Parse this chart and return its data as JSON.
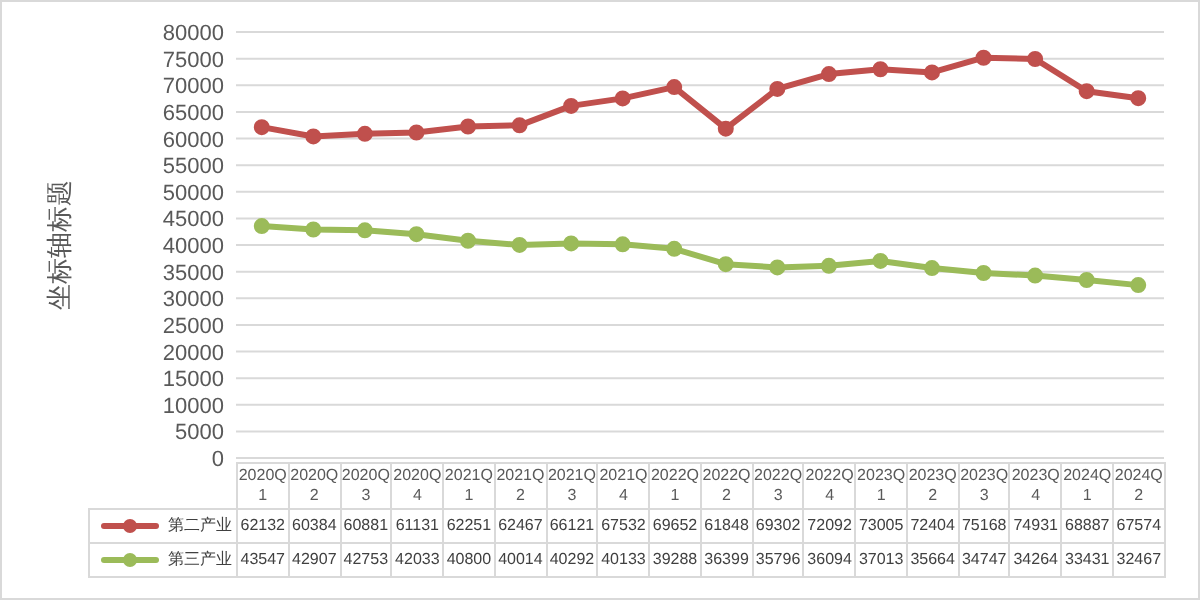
{
  "chart_data": {
    "type": "line",
    "ylabel": "坐标轴标题",
    "categories": [
      "2020Q1",
      "2020Q2",
      "2020Q3",
      "2020Q4",
      "2021Q1",
      "2021Q2",
      "2021Q3",
      "2021Q4",
      "2022Q1",
      "2022Q2",
      "2022Q3",
      "2022Q4",
      "2023Q1",
      "2023Q2",
      "2023Q3",
      "2023Q4",
      "2024Q1",
      "2024Q2"
    ],
    "series": [
      {
        "name": "第二产业",
        "color": "#c0504d",
        "values": [
          62132,
          60384,
          60881,
          61131,
          62251,
          62467,
          66121,
          67532,
          69652,
          61848,
          69302,
          72092,
          73005,
          72404,
          75168,
          74931,
          68887,
          67574
        ]
      },
      {
        "name": "第三产业",
        "color": "#9bbb59",
        "values": [
          43547,
          42907,
          42753,
          42033,
          40800,
          40014,
          40292,
          40133,
          39288,
          36399,
          35796,
          36094,
          37013,
          35664,
          34747,
          34264,
          33431,
          32467
        ]
      }
    ],
    "ylim": [
      0,
      80000
    ],
    "yticks": [
      0,
      5000,
      10000,
      15000,
      20000,
      25000,
      30000,
      35000,
      40000,
      45000,
      50000,
      55000,
      60000,
      65000,
      70000,
      75000,
      80000
    ],
    "grid": "y",
    "marker": "circle",
    "line_style": "solid",
    "data_labels": true,
    "legend": "bottom"
  }
}
